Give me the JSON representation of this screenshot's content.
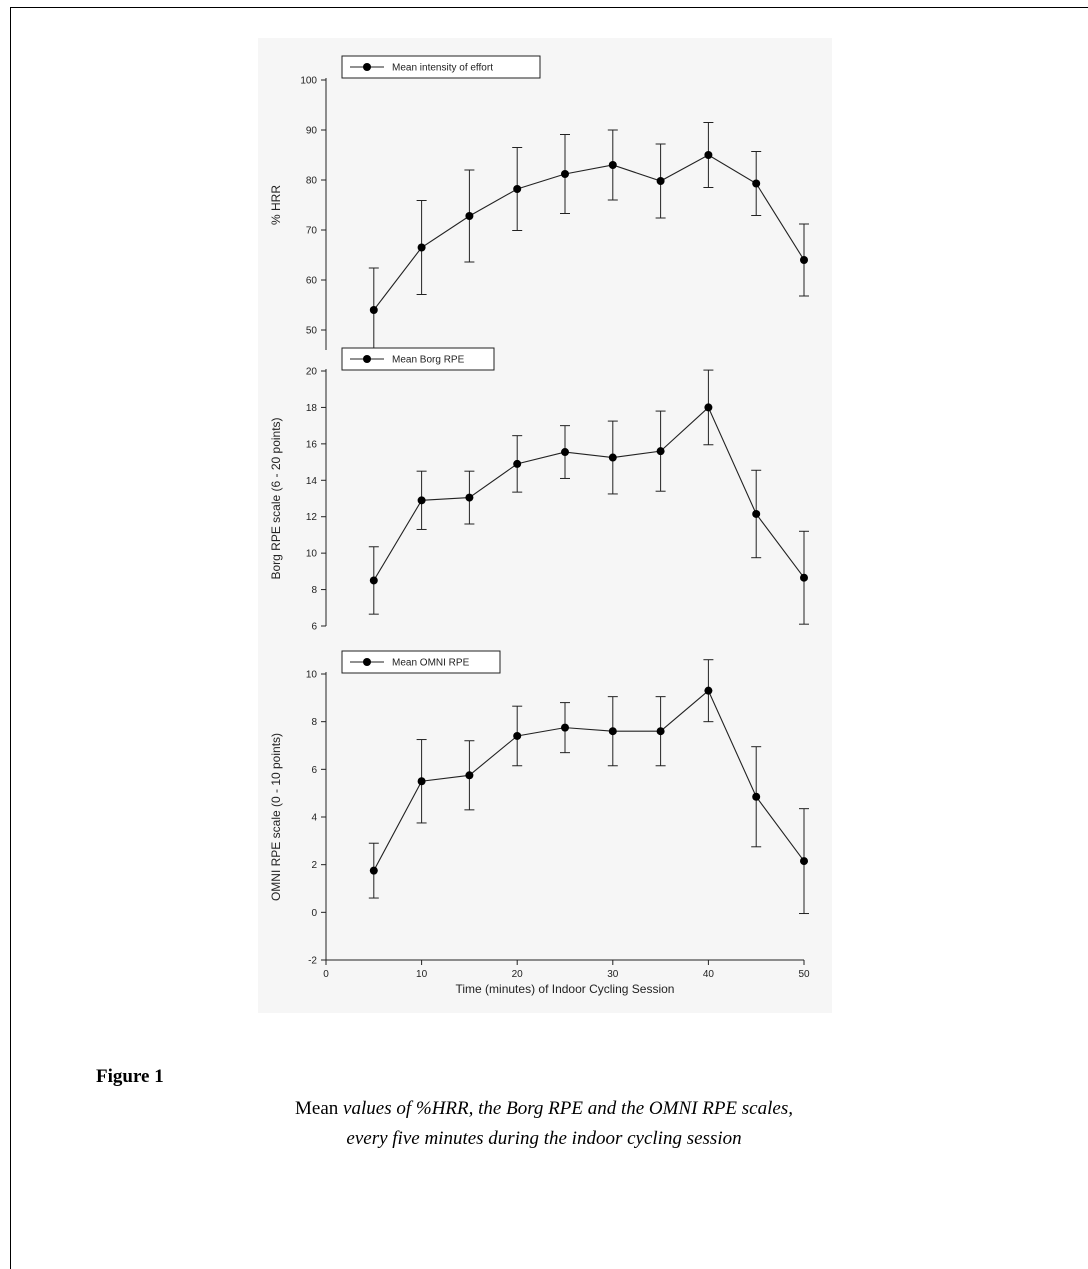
{
  "chart_data": [
    {
      "type": "line",
      "legend": "Mean intensity of effort",
      "legend_position": "top-left",
      "ylabel": "% HRR",
      "xlabel": "",
      "yticks": [
        50,
        60,
        70,
        80,
        90,
        100
      ],
      "ylim": [
        45,
        100
      ],
      "x": [
        5,
        10,
        15,
        20,
        25,
        30,
        35,
        40,
        45,
        50
      ],
      "y": [
        54,
        66.5,
        72.8,
        78.2,
        81.2,
        83,
        79.8,
        85,
        79.3,
        64
      ],
      "error": [
        8.4,
        9.4,
        9.2,
        8.3,
        7.9,
        7.0,
        7.4,
        6.5,
        6.4,
        7.2
      ],
      "grid": false
    },
    {
      "type": "line",
      "legend": "Mean Borg RPE",
      "legend_position": "top-left",
      "ylabel": "Borg RPE scale (6 - 20 points)",
      "xlabel": "",
      "yticks": [
        6,
        8,
        10,
        12,
        14,
        16,
        18,
        20
      ],
      "ylim": [
        6,
        20
      ],
      "x": [
        5,
        10,
        15,
        20,
        25,
        30,
        35,
        40,
        45,
        50
      ],
      "y": [
        8.5,
        12.9,
        13.05,
        14.9,
        15.55,
        15.25,
        15.6,
        18.0,
        12.15,
        8.65
      ],
      "error": [
        1.85,
        1.6,
        1.45,
        1.55,
        1.45,
        2.0,
        2.2,
        2.05,
        2.4,
        2.55
      ],
      "grid": false
    },
    {
      "type": "line",
      "legend": "Mean OMNI RPE",
      "legend_position": "top-left",
      "ylabel": "OMNI RPE scale (0 - 10 points)",
      "xlabel": "Time (minutes) of Indoor Cycling Session",
      "yticks": [
        -2,
        0,
        2,
        4,
        6,
        8,
        10
      ],
      "xticks": [
        0,
        10,
        20,
        30,
        40,
        50
      ],
      "xlim": [
        0,
        50
      ],
      "ylim": [
        -2,
        10
      ],
      "x": [
        5,
        10,
        15,
        20,
        25,
        30,
        35,
        40,
        45,
        50
      ],
      "y": [
        1.75,
        5.5,
        5.75,
        7.4,
        7.75,
        7.6,
        7.6,
        9.3,
        4.85,
        2.15
      ],
      "error": [
        1.15,
        1.75,
        1.45,
        1.25,
        1.05,
        1.45,
        1.45,
        1.3,
        2.1,
        2.2
      ],
      "grid": false
    }
  ],
  "figure": {
    "label": "Figure 1",
    "caption_line1_plain": "Mean ",
    "caption_line1_italic": "values of %HRR, the Borg RPE and the OMNI RPE scales,",
    "caption_line2_italic": "every five minutes during the indoor cycling session"
  }
}
